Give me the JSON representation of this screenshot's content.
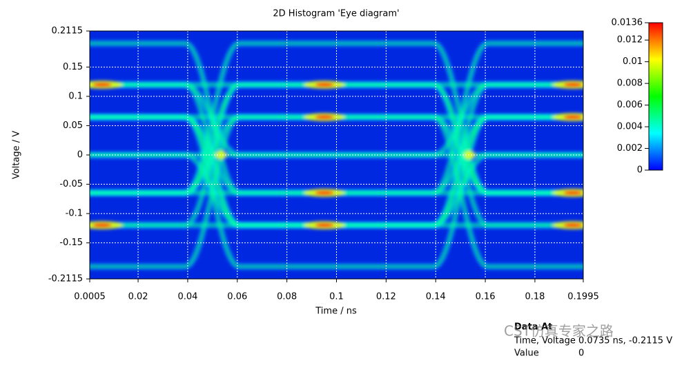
{
  "chart_data": {
    "type": "histogram2d",
    "title": "2D Histogram 'Eye diagram'",
    "xlabel": "Time / ns",
    "ylabel": "Voltage / V",
    "xlim": [
      0.0005,
      0.1995
    ],
    "ylim": [
      -0.2115,
      0.2115
    ],
    "xticks": [
      0.0005,
      0.02,
      0.04,
      0.06,
      0.08,
      0.1,
      0.12,
      0.14,
      0.16,
      0.18,
      0.1995
    ],
    "yticks": [
      0.2115,
      0.15,
      0.1,
      0.05,
      0,
      -0.05,
      -0.1,
      -0.15,
      -0.2115
    ],
    "grid": true,
    "clim": [
      0,
      0.0136
    ],
    "cticks": [
      0,
      0.002,
      0.004,
      0.006,
      0.008,
      0.01,
      0.012,
      0.0136
    ],
    "colormap": [
      "#0000ff",
      "#00ffff",
      "#00ff00",
      "#ffff00",
      "#ff0000"
    ],
    "background": "#0028e0"
  },
  "readout": {
    "title": "Data At",
    "rows": [
      [
        "Time, Voltage",
        "0.0735 ns, -0.2115 V"
      ],
      [
        "Value",
        "0"
      ]
    ]
  },
  "watermark": "CST仿真专家之路"
}
